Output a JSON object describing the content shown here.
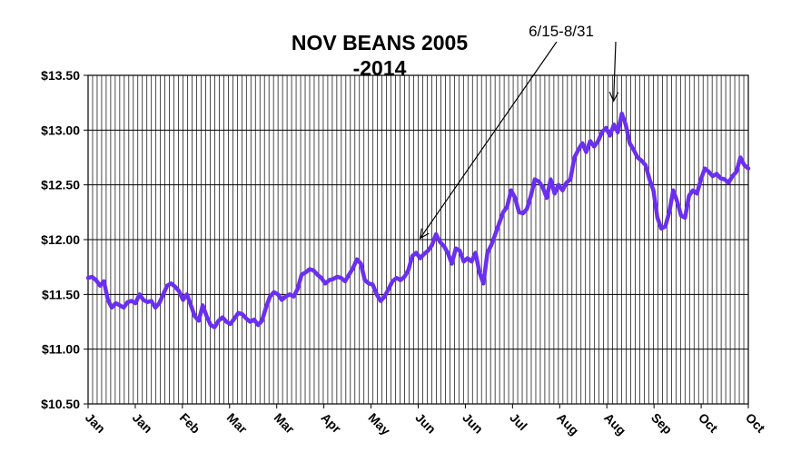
{
  "chart_data": {
    "type": "line",
    "title": "NOV BEANS 2005 -2014",
    "title_lines": [
      "NOV BEANS 2005",
      "-2014"
    ],
    "xlabel": "",
    "ylabel": "",
    "ylim": [
      10.5,
      13.5
    ],
    "y_ticks": [
      10.5,
      11.0,
      11.5,
      12.0,
      12.5,
      13.0,
      13.5
    ],
    "y_tick_labels": [
      "$10.50",
      "$11.00",
      "$11.50",
      "$12.00",
      "$12.50",
      "$13.00",
      "$13.50"
    ],
    "x_tick_labels": [
      "Jan",
      "Jan",
      "Feb",
      "Mar",
      "Mar",
      "Apr",
      "May",
      "Jun",
      "Jun",
      "Jul",
      "Aug",
      "Aug",
      "Sep",
      "Oct",
      "Oct"
    ],
    "grid": true,
    "line_color": "#6b2ff0",
    "annotation": {
      "text": "6/15-8/31",
      "start_index": 84,
      "end_index": 132
    },
    "series": [
      {
        "values": [
          11.65,
          11.66,
          11.63,
          11.58,
          11.62,
          11.45,
          11.38,
          11.42,
          11.4,
          11.38,
          11.43,
          11.44,
          11.42,
          11.5,
          11.45,
          11.43,
          11.44,
          11.38,
          11.42,
          11.5,
          11.58,
          11.6,
          11.57,
          11.53,
          11.45,
          11.5,
          11.4,
          11.3,
          11.26,
          11.4,
          11.3,
          11.22,
          11.2,
          11.26,
          11.29,
          11.25,
          11.23,
          11.28,
          11.33,
          11.32,
          11.28,
          11.25,
          11.27,
          11.22,
          11.26,
          11.38,
          11.48,
          11.52,
          11.5,
          11.45,
          11.48,
          11.5,
          11.48,
          11.55,
          11.68,
          11.7,
          11.73,
          11.72,
          11.68,
          11.65,
          11.6,
          11.63,
          11.64,
          11.66,
          11.65,
          11.62,
          11.68,
          11.74,
          11.82,
          11.78,
          11.63,
          11.6,
          11.59,
          11.5,
          11.44,
          11.48,
          11.55,
          11.62,
          11.65,
          11.63,
          11.66,
          11.72,
          11.85,
          11.88,
          11.83,
          11.87,
          11.9,
          11.95,
          12.05,
          11.98,
          11.94,
          11.88,
          11.78,
          11.92,
          11.9,
          11.8,
          11.83,
          11.8,
          11.88,
          11.7,
          11.6,
          11.88,
          11.95,
          12.05,
          12.15,
          12.25,
          12.3,
          12.45,
          12.38,
          12.25,
          12.24,
          12.28,
          12.4,
          12.55,
          12.53,
          12.48,
          12.38,
          12.55,
          12.42,
          12.5,
          12.45,
          12.52,
          12.55,
          12.75,
          12.82,
          12.88,
          12.8,
          12.9,
          12.85,
          12.9,
          12.98,
          13.02,
          12.95,
          13.05,
          12.98,
          13.15,
          13.05,
          12.88,
          12.82,
          12.75,
          12.72,
          12.68,
          12.55,
          12.45,
          12.2,
          12.1,
          12.12,
          12.25,
          12.45,
          12.35,
          12.22,
          12.2,
          12.4,
          12.45,
          12.42,
          12.55,
          12.65,
          12.62,
          12.58,
          12.6,
          12.56,
          12.55,
          12.52,
          12.58,
          12.62,
          12.75,
          12.68,
          12.65
        ]
      }
    ]
  }
}
